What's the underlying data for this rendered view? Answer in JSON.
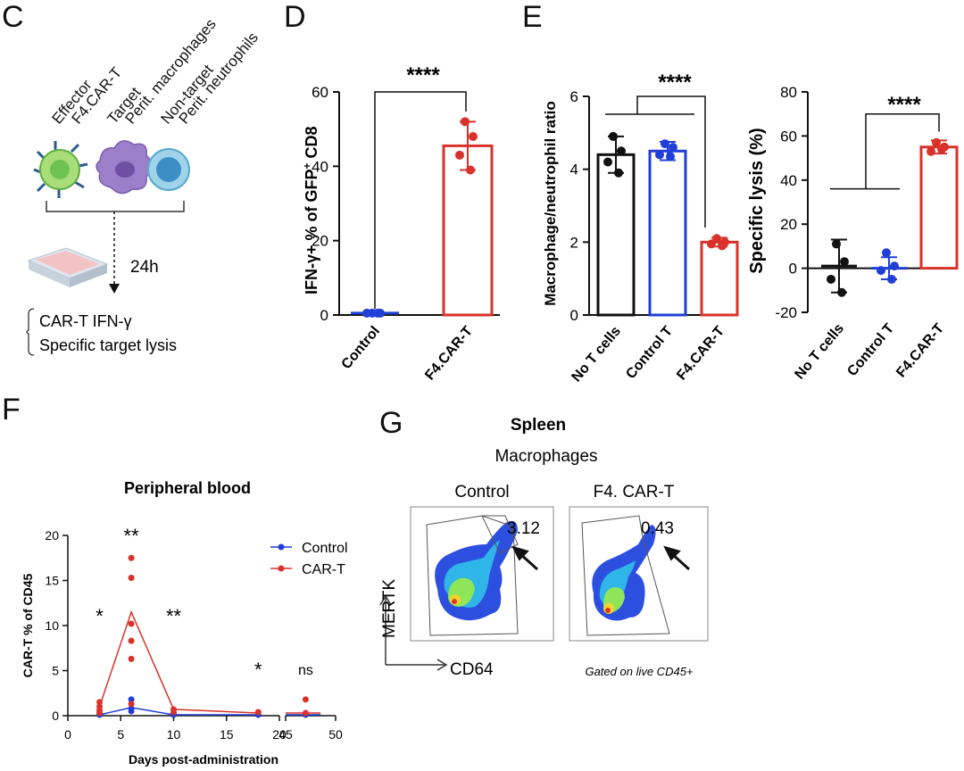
{
  "panels": {
    "C": "C",
    "D": "D",
    "E": "E",
    "F": "F",
    "G": "G"
  },
  "colors": {
    "control_blue": "#1f3fd6",
    "cart_red": "#d9322b",
    "black": "#111111"
  },
  "panelC": {
    "cell_labels": [
      "Effector",
      "F4.CAR-T",
      "Target",
      "Perit. macrophages",
      "Non-target",
      "Perit. neutrophils"
    ],
    "time_label": "24h",
    "readouts": [
      "CAR-T IFN-γ",
      "Specific target lysis"
    ],
    "icons": [
      "car-t-cell-icon",
      "macrophage-cell-icon",
      "neutrophil-cell-icon",
      "culture-plate-icon"
    ]
  },
  "chart_data": [
    {
      "id": "D",
      "type": "bar",
      "ylabel_main": "IFN-γ+ % of GFP",
      "ylabel_sup": "+",
      "ylabel_tail": " CD8",
      "ylim": [
        0,
        60
      ],
      "yticks": [
        "0",
        "20",
        "40",
        "60"
      ],
      "categories": [
        "Control",
        "F4.CAR-T"
      ],
      "values": [
        0.5,
        45.5
      ],
      "errors": [
        0.3,
        6.5
      ],
      "points": [
        [
          0.5,
          0.5,
          0.5,
          0.5
        ],
        [
          52,
          48,
          43,
          39
        ]
      ],
      "significance": "****"
    },
    {
      "id": "E1",
      "type": "bar",
      "ylabel": "Macrophage/neutrophil ratio",
      "ylim": [
        0,
        6
      ],
      "yticks": [
        "0",
        "2",
        "4",
        "6"
      ],
      "categories": [
        "No T cells",
        "Control T",
        "F4.CAR-T"
      ],
      "values": [
        4.4,
        4.5,
        2.0
      ],
      "errors": [
        0.5,
        0.25,
        0.12
      ],
      "points": [
        [
          4.9,
          4.5,
          4.2,
          3.9
        ],
        [
          4.7,
          4.6,
          4.4,
          4.35
        ],
        [
          2.1,
          2.0,
          1.95,
          1.9
        ]
      ],
      "significance": "****"
    },
    {
      "id": "E2",
      "type": "bar",
      "ylabel": "Specific lysis (%)",
      "ylim": [
        -20,
        80
      ],
      "yticks": [
        "-20",
        "0",
        "20",
        "40",
        "60",
        "80"
      ],
      "categories": [
        "No T cells",
        "Control T",
        "F4.CAR-T"
      ],
      "values": [
        1,
        0,
        55
      ],
      "errors": [
        12,
        5,
        3
      ],
      "points": [
        [
          11,
          3,
          -5,
          -11
        ],
        [
          7,
          1,
          -1,
          -5
        ],
        [
          57,
          55,
          53,
          54
        ]
      ],
      "significance": "****"
    },
    {
      "id": "F",
      "type": "line",
      "title": "Peripheral blood",
      "xlabel": "Days post-administration",
      "ylabel": "CAR-T % of CD45",
      "ylim": [
        0,
        20
      ],
      "yticks": [
        "0",
        "5",
        "10",
        "15",
        "20"
      ],
      "xticks": [
        "0",
        "5",
        "10",
        "15",
        "20",
        "45",
        "50"
      ],
      "series": [
        {
          "name": "Control",
          "x": [
            3,
            6,
            10,
            18,
            47
          ],
          "values": [
            0.1,
            0.9,
            0.1,
            0.1,
            0.1
          ],
          "points": [
            [
              3,
              0.1
            ],
            [
              3,
              0.2
            ],
            [
              6,
              1.8
            ],
            [
              6,
              0.8
            ],
            [
              6,
              0.5
            ],
            [
              10,
              0.1
            ],
            [
              10,
              0.2
            ],
            [
              18,
              0.1
            ],
            [
              47,
              0.1
            ]
          ]
        },
        {
          "name": "CAR-T",
          "x": [
            3,
            6,
            10,
            18,
            47
          ],
          "values": [
            1.0,
            11.5,
            0.7,
            0.3,
            0.3
          ],
          "points": [
            [
              3,
              1.5
            ],
            [
              3,
              1.0
            ],
            [
              3,
              0.6
            ],
            [
              3,
              0.3
            ],
            [
              6,
              17.5
            ],
            [
              6,
              15.3
            ],
            [
              6,
              10.2
            ],
            [
              6,
              8.3
            ],
            [
              6,
              6.3
            ],
            [
              6,
              1.3
            ],
            [
              10,
              0.7
            ],
            [
              10,
              0.4
            ],
            [
              18,
              0.4
            ],
            [
              47,
              1.8
            ],
            [
              47,
              0.3
            ]
          ]
        }
      ],
      "annotations": [
        {
          "x": 3,
          "text": "*"
        },
        {
          "x": 6,
          "text": "**"
        },
        {
          "x": 10,
          "text": "**"
        },
        {
          "x": 18,
          "text": "*"
        },
        {
          "x": 47,
          "text": "ns"
        }
      ],
      "legend": "top-right"
    }
  ],
  "panelG": {
    "title": "Spleen",
    "subtitle": "Macrophages",
    "plots": [
      {
        "label": "Control",
        "gate_value": "3.12"
      },
      {
        "label": "F4. CAR-T",
        "gate_value": "0.43"
      }
    ],
    "yaxis": "MERTK",
    "xaxis": "CD64",
    "footnote": "Gated on live CD45+"
  }
}
